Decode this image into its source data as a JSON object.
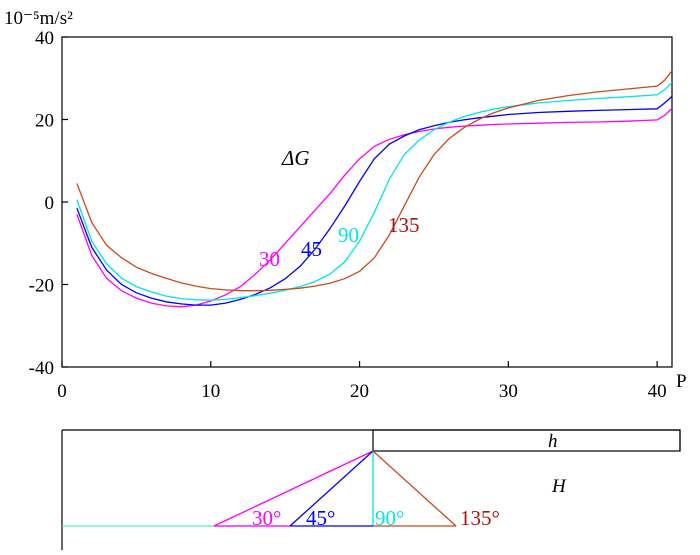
{
  "chart_data": {
    "type": "line",
    "ylabel": "10⁻⁵m/s²",
    "xlabel": "P",
    "annotation": "ΔG",
    "xlim": [
      0,
      41
    ],
    "ylim": [
      -40,
      40
    ],
    "x_ticks": [
      "0",
      "10",
      "20",
      "30",
      "40"
    ],
    "y_ticks": [
      "-40",
      "-20",
      "0",
      "20",
      "40"
    ],
    "series": [
      {
        "name": "30",
        "color": "#ff00ff",
        "points": [
          [
            1,
            -3
          ],
          [
            2,
            -13
          ],
          [
            3,
            -18.5
          ],
          [
            4,
            -21.5
          ],
          [
            5,
            -23.3
          ],
          [
            6,
            -24.5
          ],
          [
            7,
            -25.2
          ],
          [
            8,
            -25.4
          ],
          [
            9,
            -25
          ],
          [
            10,
            -24
          ],
          [
            11,
            -22.5
          ],
          [
            12,
            -20.5
          ],
          [
            13,
            -17.5
          ],
          [
            14,
            -14
          ],
          [
            15,
            -10
          ],
          [
            16,
            -6
          ],
          [
            17,
            -2
          ],
          [
            18,
            2
          ],
          [
            19,
            6.5
          ],
          [
            20,
            10.5
          ],
          [
            21,
            13.5
          ],
          [
            22,
            15.2
          ],
          [
            23,
            16.3
          ],
          [
            24,
            17.1
          ],
          [
            25,
            17.7
          ],
          [
            26,
            18.1
          ],
          [
            27,
            18.4
          ],
          [
            28,
            18.6
          ],
          [
            29,
            18.8
          ],
          [
            30,
            18.9
          ],
          [
            32,
            19.1
          ],
          [
            34,
            19.3
          ],
          [
            36,
            19.4
          ],
          [
            38,
            19.6
          ],
          [
            40,
            19.9
          ],
          [
            40.5,
            21
          ],
          [
            41,
            22.7
          ]
        ]
      },
      {
        "name": "45",
        "color": "#0000ff",
        "points": [
          [
            1,
            -1.5
          ],
          [
            2,
            -11
          ],
          [
            3,
            -16.5
          ],
          [
            4,
            -20
          ],
          [
            5,
            -22
          ],
          [
            6,
            -23.3
          ],
          [
            7,
            -24.2
          ],
          [
            8,
            -24.7
          ],
          [
            9,
            -25
          ],
          [
            10,
            -25
          ],
          [
            11,
            -24.5
          ],
          [
            12,
            -23.6
          ],
          [
            13,
            -22.4
          ],
          [
            14,
            -20.8
          ],
          [
            15,
            -18.6
          ],
          [
            16,
            -15.6
          ],
          [
            17,
            -11.5
          ],
          [
            18,
            -6.5
          ],
          [
            19,
            -1
          ],
          [
            20,
            5
          ],
          [
            21,
            10.5
          ],
          [
            22,
            14
          ],
          [
            23,
            16
          ],
          [
            24,
            17.5
          ],
          [
            25,
            18.5
          ],
          [
            26,
            19.3
          ],
          [
            27,
            19.9
          ],
          [
            28,
            20.4
          ],
          [
            29,
            20.8
          ],
          [
            30,
            21.2
          ],
          [
            32,
            21.7
          ],
          [
            34,
            22
          ],
          [
            36,
            22.2
          ],
          [
            38,
            22.4
          ],
          [
            40,
            22.6
          ],
          [
            40.5,
            24
          ],
          [
            41,
            25.6
          ]
        ]
      },
      {
        "name": "90",
        "color": "#00e6e6",
        "points": [
          [
            1,
            0.5
          ],
          [
            2,
            -9.5
          ],
          [
            3,
            -15
          ],
          [
            4,
            -18.5
          ],
          [
            5,
            -20.5
          ],
          [
            6,
            -21.8
          ],
          [
            7,
            -22.8
          ],
          [
            8,
            -23.4
          ],
          [
            9,
            -23.7
          ],
          [
            10,
            -23.8
          ],
          [
            11,
            -23.6
          ],
          [
            12,
            -23.2
          ],
          [
            13,
            -22.7
          ],
          [
            14,
            -22.1
          ],
          [
            15,
            -21.4
          ],
          [
            16,
            -20.5
          ],
          [
            17,
            -19.3
          ],
          [
            18,
            -17.5
          ],
          [
            19,
            -14.5
          ],
          [
            20,
            -9.5
          ],
          [
            21,
            -2.5
          ],
          [
            22,
            5.5
          ],
          [
            23,
            11.5
          ],
          [
            24,
            15
          ],
          [
            25,
            17.5
          ],
          [
            26,
            19.3
          ],
          [
            27,
            20.7
          ],
          [
            28,
            21.7
          ],
          [
            29,
            22.5
          ],
          [
            30,
            23.1
          ],
          [
            32,
            24
          ],
          [
            34,
            24.6
          ],
          [
            36,
            25.1
          ],
          [
            38,
            25.5
          ],
          [
            40,
            26
          ],
          [
            40.5,
            27.2
          ],
          [
            41,
            29
          ]
        ]
      },
      {
        "name": "135",
        "color": "#cc4a1a",
        "points": [
          [
            1,
            4.5
          ],
          [
            2,
            -5
          ],
          [
            3,
            -10.5
          ],
          [
            4,
            -13.5
          ],
          [
            5,
            -15.8
          ],
          [
            6,
            -17.3
          ],
          [
            7,
            -18.5
          ],
          [
            8,
            -19.6
          ],
          [
            9,
            -20.4
          ],
          [
            10,
            -21
          ],
          [
            11,
            -21.3
          ],
          [
            12,
            -21.5
          ],
          [
            13,
            -21.5
          ],
          [
            14,
            -21.4
          ],
          [
            15,
            -21.2
          ],
          [
            16,
            -20.9
          ],
          [
            17,
            -20.4
          ],
          [
            18,
            -19.7
          ],
          [
            19,
            -18.6
          ],
          [
            20,
            -16.8
          ],
          [
            21,
            -13.5
          ],
          [
            22,
            -8
          ],
          [
            23,
            -1
          ],
          [
            24,
            6
          ],
          [
            25,
            11.5
          ],
          [
            26,
            15.3
          ],
          [
            27,
            18
          ],
          [
            28,
            20
          ],
          [
            29,
            21.6
          ],
          [
            30,
            22.8
          ],
          [
            32,
            24.6
          ],
          [
            34,
            25.8
          ],
          [
            36,
            26.7
          ],
          [
            38,
            27.4
          ],
          [
            40,
            28.1
          ],
          [
            40.5,
            29.5
          ],
          [
            41,
            31.8
          ]
        ]
      }
    ],
    "curve_labels": [
      {
        "text": "30",
        "color": "#ff00ff"
      },
      {
        "text": "45",
        "color": "#0000ff"
      },
      {
        "text": "90",
        "color": "#00e6e6"
      },
      {
        "text": "135",
        "color": "#aa1111"
      }
    ]
  },
  "diagram": {
    "h_label": "h",
    "H_label": "H",
    "dips": [
      {
        "label": "30°",
        "color": "#ff00ff",
        "line_color": "#ff00ff"
      },
      {
        "label": "45°",
        "color": "#0000ff",
        "line_color": "#0000ff"
      },
      {
        "label": "90°",
        "color": "#00e6e6",
        "line_color": "#00e6e6"
      },
      {
        "label": "135°",
        "color": "#aa1111",
        "line_color": "#cc4a1a"
      }
    ],
    "base_color": "#66e8c8"
  }
}
